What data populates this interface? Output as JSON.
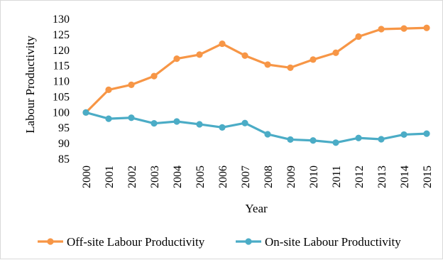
{
  "chart_data": {
    "type": "line",
    "title": "",
    "xlabel": "Year",
    "ylabel": "Labour Productivity",
    "ylim": [
      85,
      130
    ],
    "yticks": [
      85,
      90,
      95,
      100,
      105,
      110,
      115,
      120,
      125,
      130
    ],
    "grid": false,
    "legend_position": "bottom",
    "categories": [
      "2000",
      "2001",
      "2002",
      "2003",
      "2004",
      "2005",
      "2006",
      "2007",
      "2008",
      "2009",
      "2010",
      "2011",
      "2012",
      "2013",
      "2014",
      "2015"
    ],
    "series": [
      {
        "name": "Off-site Labour Productivity",
        "color": "#f79646",
        "values": [
          100,
          107.3,
          108.9,
          111.7,
          117.3,
          118.6,
          122.1,
          118.3,
          115.4,
          114.4,
          117.0,
          119.2,
          124.4,
          126.8,
          127.0,
          127.2
        ]
      },
      {
        "name": "On-site Labour Productivity",
        "color": "#4bacc6",
        "values": [
          100,
          98.0,
          98.3,
          96.5,
          97.1,
          96.2,
          95.2,
          96.6,
          93.0,
          91.3,
          91.0,
          90.3,
          91.8,
          91.4,
          92.9,
          93.2
        ]
      }
    ]
  }
}
